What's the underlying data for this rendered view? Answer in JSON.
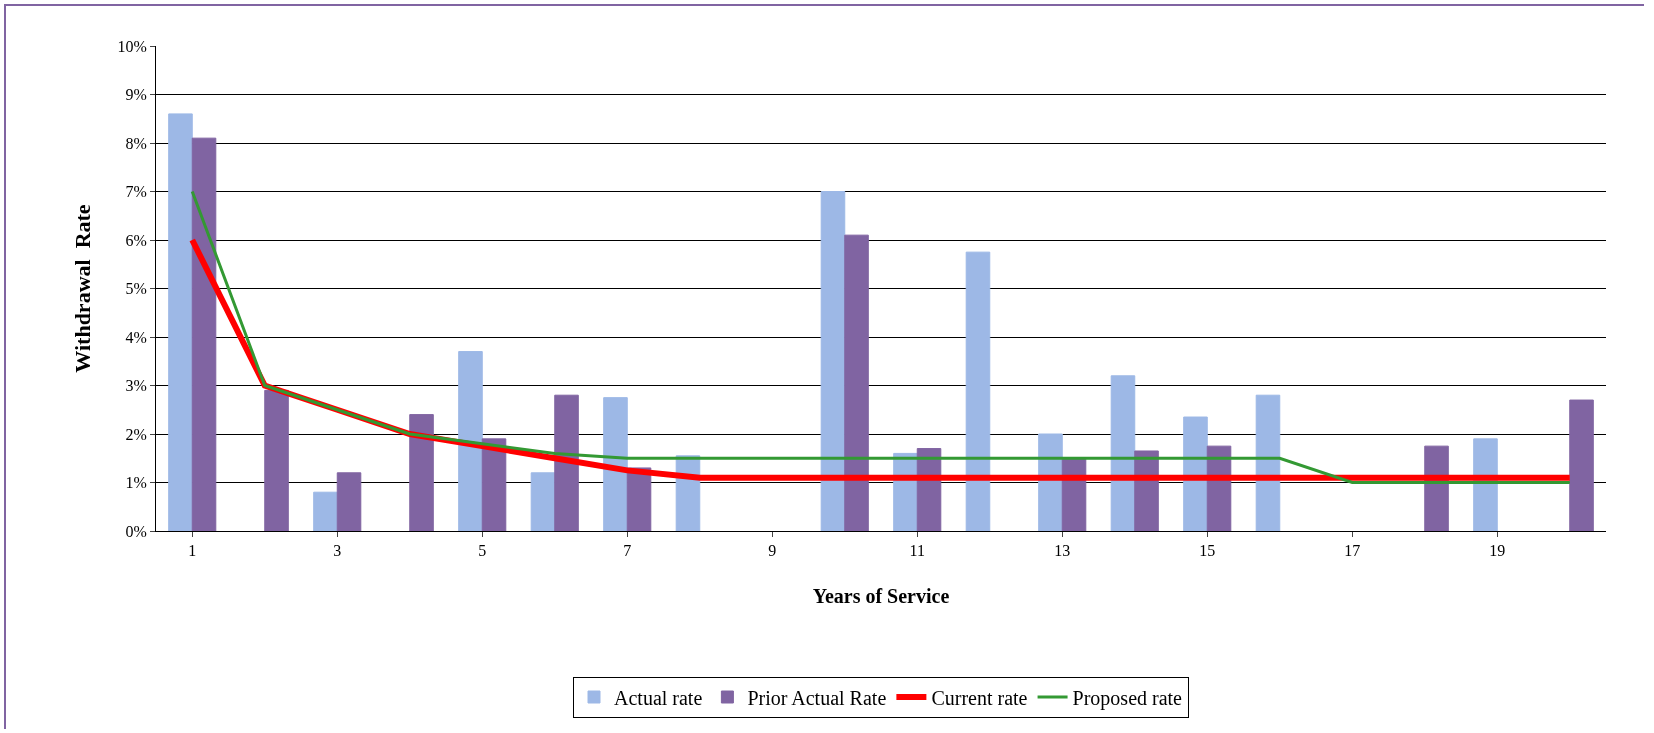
{
  "chart_data": {
    "type": "bar",
    "xlabel": "Years of Service",
    "ylabel": "Withdrawal  Rate",
    "categories": [
      "1",
      null,
      "3",
      null,
      "5",
      null,
      "7",
      null,
      "9",
      null,
      "11",
      null,
      "13",
      null,
      "15",
      null,
      "17",
      null,
      "19",
      null
    ],
    "series": [
      {
        "name": "Actual rate",
        "color": "#9db8e6",
        "values": [
          8.6,
          null,
          0.8,
          null,
          3.7,
          1.2,
          2.75,
          1.55,
          null,
          7.0,
          1.6,
          5.75,
          2.0,
          3.2,
          2.35,
          2.8,
          null,
          null,
          1.9,
          null
        ]
      },
      {
        "name": "Prior Actual Rate",
        "color": "#8064a2",
        "values": [
          8.1,
          2.9,
          1.2,
          2.4,
          1.9,
          2.8,
          1.3,
          null,
          null,
          6.1,
          1.7,
          null,
          1.5,
          1.65,
          1.75,
          null,
          null,
          1.75,
          null,
          2.7
        ]
      },
      {
        "name": "Current rate",
        "type": "line",
        "color": "#ff0000",
        "values": [
          6,
          3,
          2.5,
          2,
          1.75,
          1.5,
          1.25,
          1.1,
          1.1,
          1.1,
          1.1,
          1.1,
          1.1,
          1.1,
          1.1,
          1.1,
          1.1,
          1.1,
          1.1,
          1.1
        ]
      },
      {
        "name": "Proposed rate",
        "type": "line",
        "color": "#339933",
        "values": [
          7,
          3,
          2.5,
          2,
          1.8,
          1.6,
          1.5,
          1.5,
          1.5,
          1.5,
          1.5,
          1.5,
          1.5,
          1.5,
          1.5,
          1.5,
          1,
          1,
          1,
          1
        ]
      }
    ],
    "ylim": [
      0,
      10
    ],
    "yticks": [
      {
        "value": 0,
        "label": "0%"
      },
      {
        "value": 1,
        "label": "1%"
      },
      {
        "value": 2,
        "label": "2%"
      },
      {
        "value": 3,
        "label": "3%"
      },
      {
        "value": 4,
        "label": "4%"
      },
      {
        "value": 5,
        "label": "5%"
      },
      {
        "value": 6,
        "label": "6%"
      },
      {
        "value": 7,
        "label": "7%"
      },
      {
        "value": 8,
        "label": "8%"
      },
      {
        "value": 9,
        "label": "9%"
      },
      {
        "value": 10,
        "label": "10%"
      }
    ],
    "grid": "y",
    "legend": "bottom",
    "marker": "none",
    "line_style": "solid"
  }
}
